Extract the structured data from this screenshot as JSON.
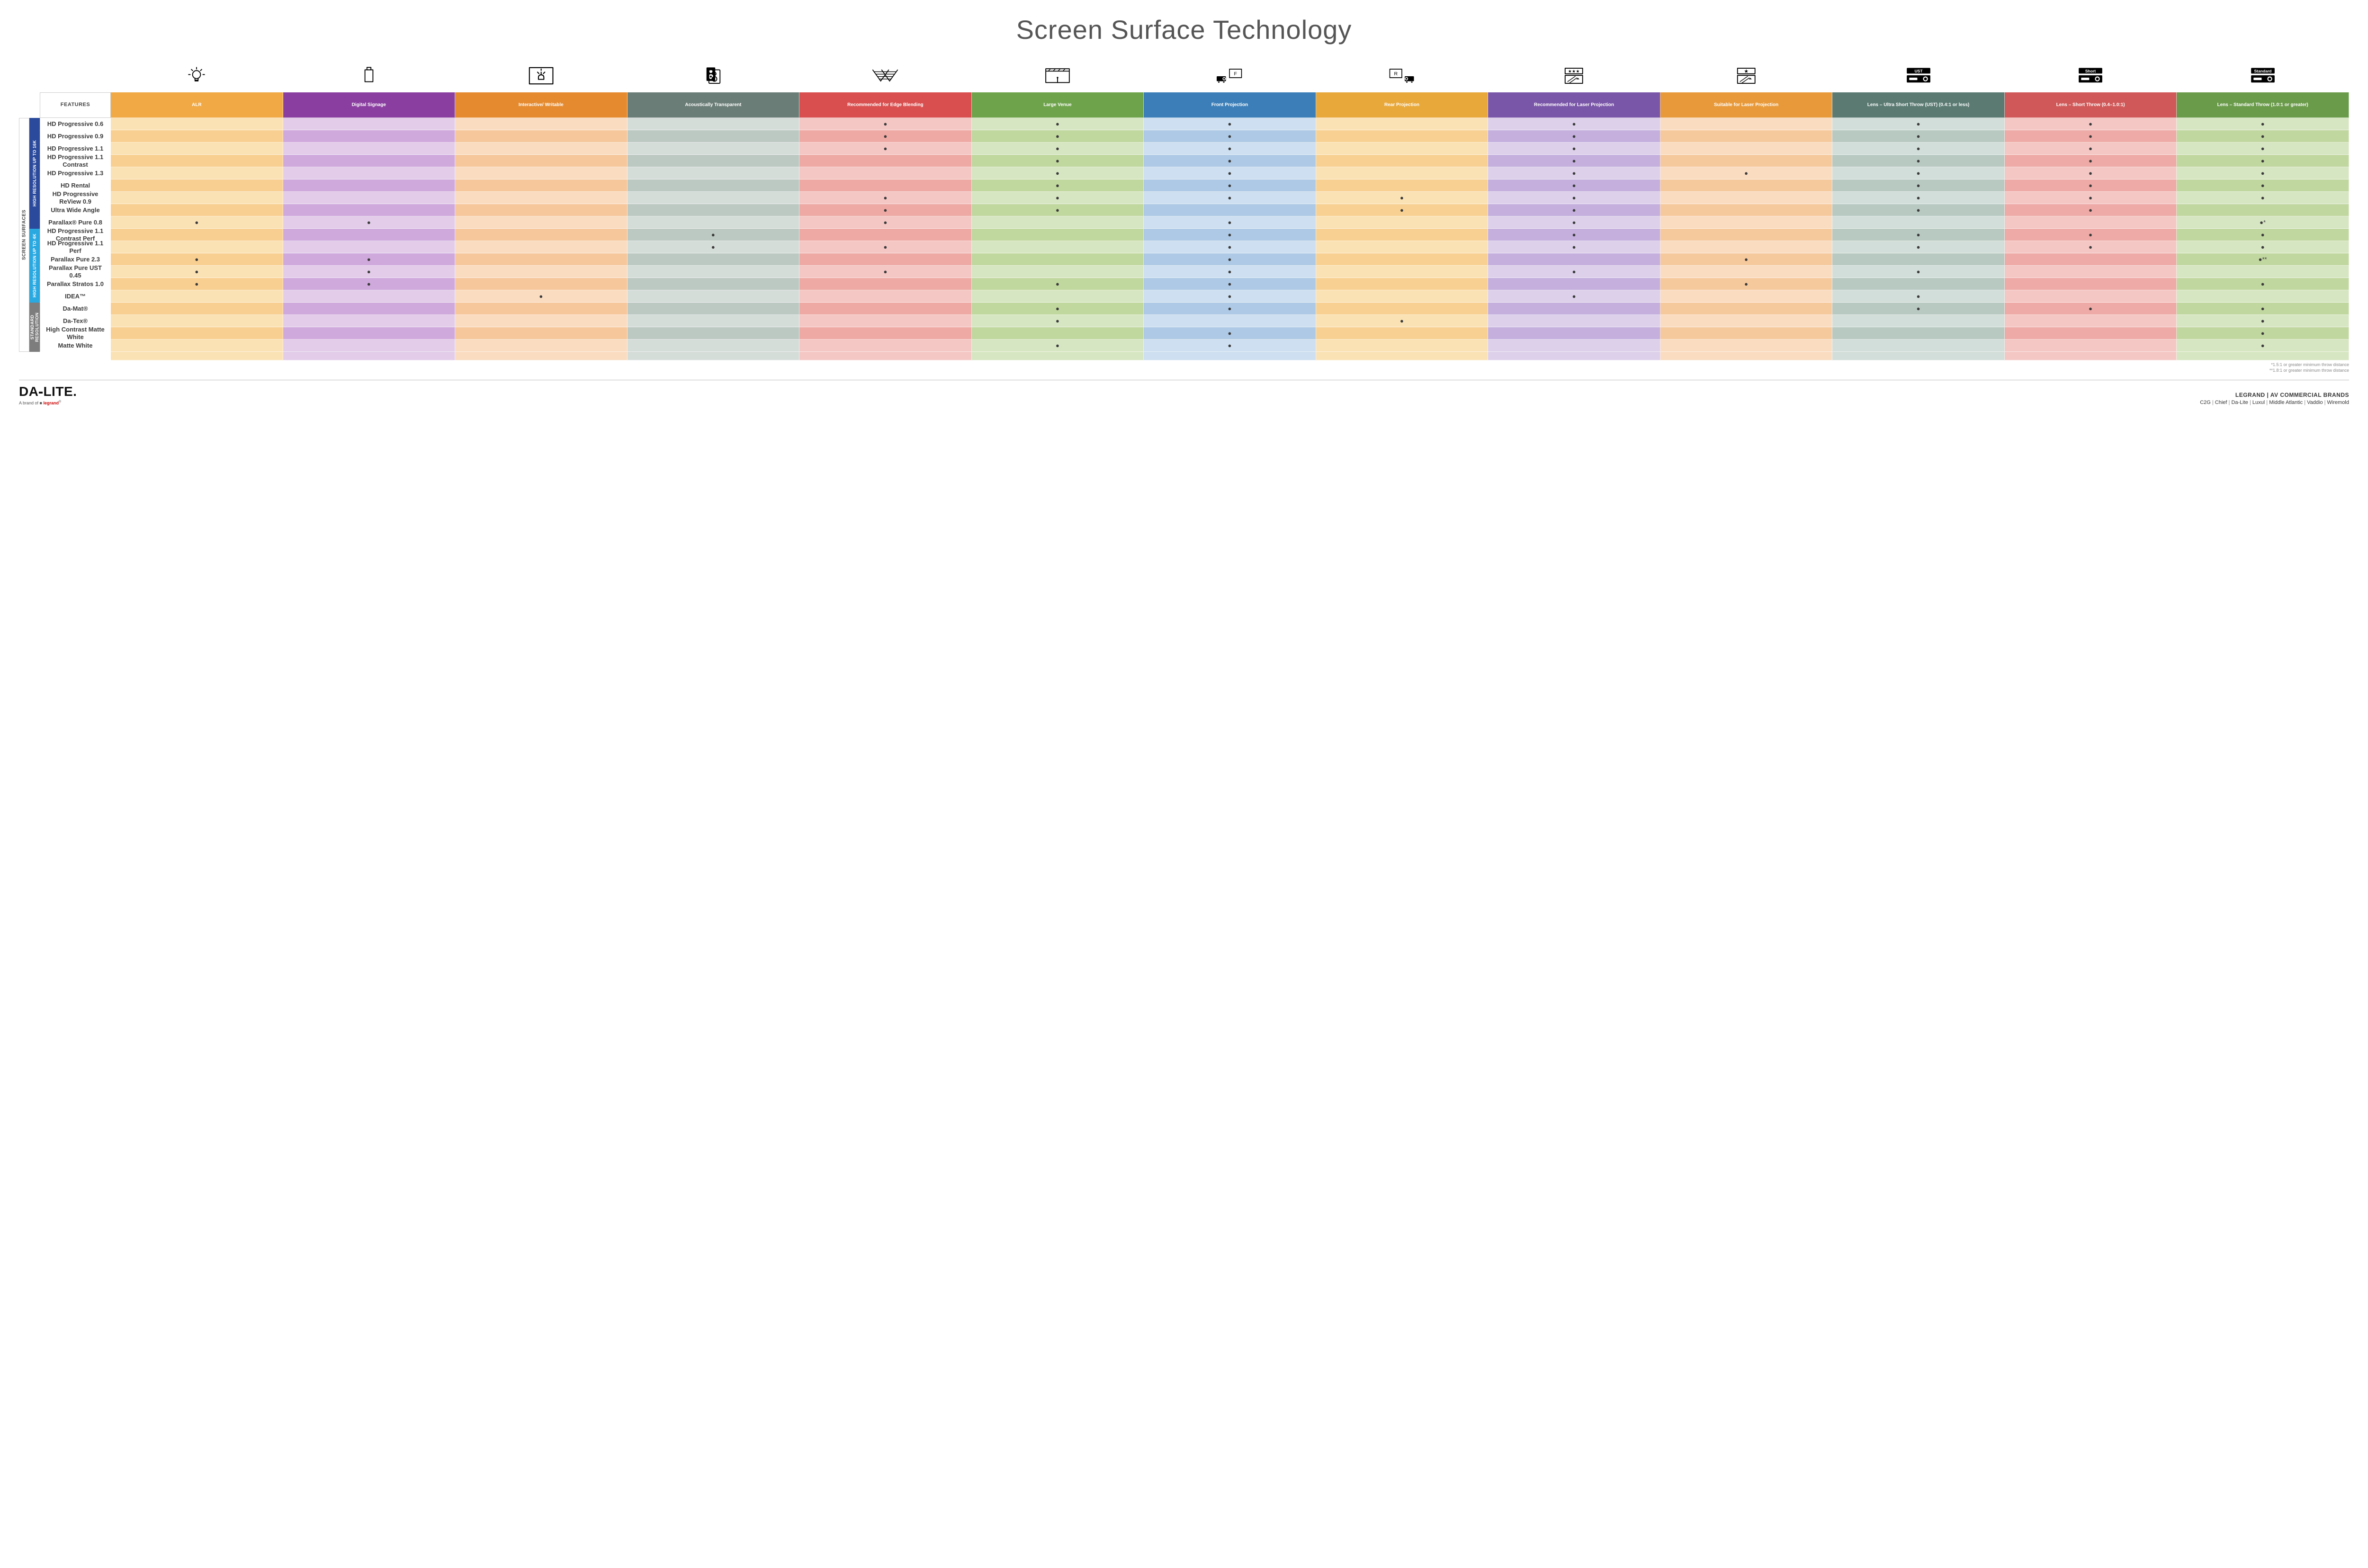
{
  "page": {
    "title": "Screen Surface Technology",
    "features_header": "FEATURES",
    "side_outer": "SCREEN SURFACES",
    "side_groups": [
      {
        "label": "HIGH RESOLUTION UP TO 16K",
        "color": "#2b4a9b",
        "rows": 9
      },
      {
        "label": "HIGH RESOLUTION UP TO 4K",
        "color": "#2aa8e0",
        "rows": 6
      },
      {
        "label": "STANDARD RESOLUTION",
        "color": "#7d7d7d",
        "rows": 4
      }
    ]
  },
  "columns": [
    {
      "id": "alr",
      "label": "ALR",
      "header_color": "#f0a944",
      "light": "#fbe2b5",
      "dark": "#f8cf90",
      "icon": "bulb"
    },
    {
      "id": "sign",
      "label": "Digital Signage",
      "header_color": "#8a3fa0",
      "light": "#e2cce9",
      "dark": "#cfa8dc",
      "icon": "signage"
    },
    {
      "id": "write",
      "label": "Interactive/ Writable",
      "header_color": "#e58a2e",
      "light": "#fadcc1",
      "dark": "#f6c79b",
      "icon": "touch"
    },
    {
      "id": "acous",
      "label": "Acoustically Transparent",
      "header_color": "#6b7d77",
      "light": "#d5ddd9",
      "dark": "#bcc8c2",
      "icon": "speaker"
    },
    {
      "id": "edge",
      "label": "Recommended for Edge Blending",
      "header_color": "#d94f4f",
      "light": "#f4c7c4",
      "dark": "#eea9a4",
      "icon": "blend"
    },
    {
      "id": "venue",
      "label": "Large Venue",
      "header_color": "#6ea34b",
      "light": "#d7e6c2",
      "dark": "#c0d79e",
      "icon": "venue"
    },
    {
      "id": "front",
      "label": "Front Projection",
      "header_color": "#3c7fb8",
      "light": "#cddff0",
      "dark": "#aec9e5",
      "icon": "front"
    },
    {
      "id": "rear",
      "label": "Rear Projection",
      "header_color": "#e8a83a",
      "light": "#fbe2b5",
      "dark": "#f8d192",
      "icon": "rear"
    },
    {
      "id": "reclaser",
      "label": "Recommended for Laser Projection",
      "header_color": "#7a56a8",
      "light": "#ddd0ea",
      "dark": "#c4afdd",
      "icon": "laser-rec"
    },
    {
      "id": "suitlaser",
      "label": "Suitable for Laser Projection",
      "header_color": "#e89a3a",
      "light": "#fadcc1",
      "dark": "#f6c99d",
      "icon": "laser-suit"
    },
    {
      "id": "ust",
      "label": "Lens – Ultra Short Throw (UST) (0.4:1 or less)",
      "header_color": "#5a7a72",
      "light": "#d2ded9",
      "dark": "#b8c9c2",
      "icon": "proj-ust"
    },
    {
      "id": "short",
      "label": "Lens – Short Throw (0.4–1.0:1)",
      "header_color": "#d05858",
      "light": "#f4c7c4",
      "dark": "#eeaaa6",
      "icon": "proj-short"
    },
    {
      "id": "std",
      "label": "Lens – Standard Throw (1.0:1 or greater)",
      "header_color": "#6a9b4a",
      "light": "#d7e6c2",
      "dark": "#c1d7a0",
      "icon": "proj-std"
    }
  ],
  "rows": [
    {
      "name": "HD Progressive 0.6",
      "marks": {
        "edge": "●",
        "venue": "●",
        "front": "●",
        "reclaser": "●",
        "ust": "●",
        "short": "●",
        "std": "●"
      }
    },
    {
      "name": "HD Progressive 0.9",
      "marks": {
        "edge": "●",
        "venue": "●",
        "front": "●",
        "reclaser": "●",
        "ust": "●",
        "short": "●",
        "std": "●"
      }
    },
    {
      "name": "HD Progressive 1.1",
      "marks": {
        "edge": "●",
        "venue": "●",
        "front": "●",
        "reclaser": "●",
        "ust": "●",
        "short": "●",
        "std": "●"
      }
    },
    {
      "name": "HD Progressive 1.1 Contrast",
      "marks": {
        "venue": "●",
        "front": "●",
        "reclaser": "●",
        "ust": "●",
        "short": "●",
        "std": "●"
      }
    },
    {
      "name": "HD Progressive 1.3",
      "marks": {
        "venue": "●",
        "front": "●",
        "reclaser": "●",
        "suitlaser": "●",
        "ust": "●",
        "short": "●",
        "std": "●"
      }
    },
    {
      "name": "HD Rental",
      "marks": {
        "venue": "●",
        "front": "●",
        "reclaser": "●",
        "ust": "●",
        "short": "●",
        "std": "●"
      }
    },
    {
      "name": "HD Progressive ReView 0.9",
      "marks": {
        "edge": "●",
        "venue": "●",
        "front": "●",
        "rear": "●",
        "reclaser": "●",
        "ust": "●",
        "short": "●",
        "std": "●"
      }
    },
    {
      "name": "Ultra Wide Angle",
      "marks": {
        "edge": "●",
        "venue": "●",
        "rear": "●",
        "reclaser": "●",
        "ust": "●",
        "short": "●"
      }
    },
    {
      "name": "Parallax® Pure 0.8",
      "marks": {
        "alr": "●",
        "sign": "●",
        "edge": "●",
        "front": "●",
        "reclaser": "●",
        "std": "●*"
      }
    },
    {
      "name": "HD Progressive 1.1 Contrast Perf",
      "marks": {
        "acous": "●",
        "front": "●",
        "reclaser": "●",
        "ust": "●",
        "short": "●",
        "std": "●"
      }
    },
    {
      "name": "HD Progressive 1.1 Perf",
      "marks": {
        "acous": "●",
        "edge": "●",
        "front": "●",
        "reclaser": "●",
        "ust": "●",
        "short": "●",
        "std": "●"
      }
    },
    {
      "name": "Parallax Pure 2.3",
      "marks": {
        "alr": "●",
        "sign": "●",
        "front": "●",
        "suitlaser": "●",
        "std": "●**"
      }
    },
    {
      "name": "Parallax Pure UST 0.45",
      "marks": {
        "alr": "●",
        "sign": "●",
        "edge": "●",
        "front": "●",
        "reclaser": "●",
        "ust": "●"
      }
    },
    {
      "name": "Parallax Stratos 1.0",
      "marks": {
        "alr": "●",
        "sign": "●",
        "venue": "●",
        "front": "●",
        "suitlaser": "●",
        "std": "●"
      }
    },
    {
      "name": "IDEA™",
      "marks": {
        "write": "●",
        "front": "●",
        "reclaser": "●",
        "ust": "●"
      }
    },
    {
      "name": "Da-Mat®",
      "marks": {
        "venue": "●",
        "front": "●",
        "ust": "●",
        "short": "●",
        "std": "●"
      }
    },
    {
      "name": "Da-Tex®",
      "marks": {
        "venue": "●",
        "rear": "●",
        "std": "●"
      }
    },
    {
      "name": "High Contrast Matte White",
      "marks": {
        "front": "●",
        "std": "●"
      }
    },
    {
      "name": "Matte White",
      "marks": {
        "venue": "●",
        "front": "●",
        "std": "●"
      }
    }
  ],
  "footnotes": [
    "*1.5:1 or greater minimum throw distance",
    "**1.8:1 or greater minimum throw distance"
  ],
  "footer": {
    "logo_a": "DA",
    "logo_b": "LITE.",
    "sublogo_pre": "A brand of ",
    "sublogo_red": "legrand",
    "brands_tag": "LEGRAND | AV COMMERCIAL BRANDS",
    "brands_list": [
      "C2G",
      "Chief",
      "Da-Lite",
      "Luxul",
      "Middle Atlantic",
      "Vaddio",
      "Wiremold"
    ]
  },
  "icon_labels": {
    "ust": "UST",
    "short": "Short",
    "std": "Standard"
  }
}
